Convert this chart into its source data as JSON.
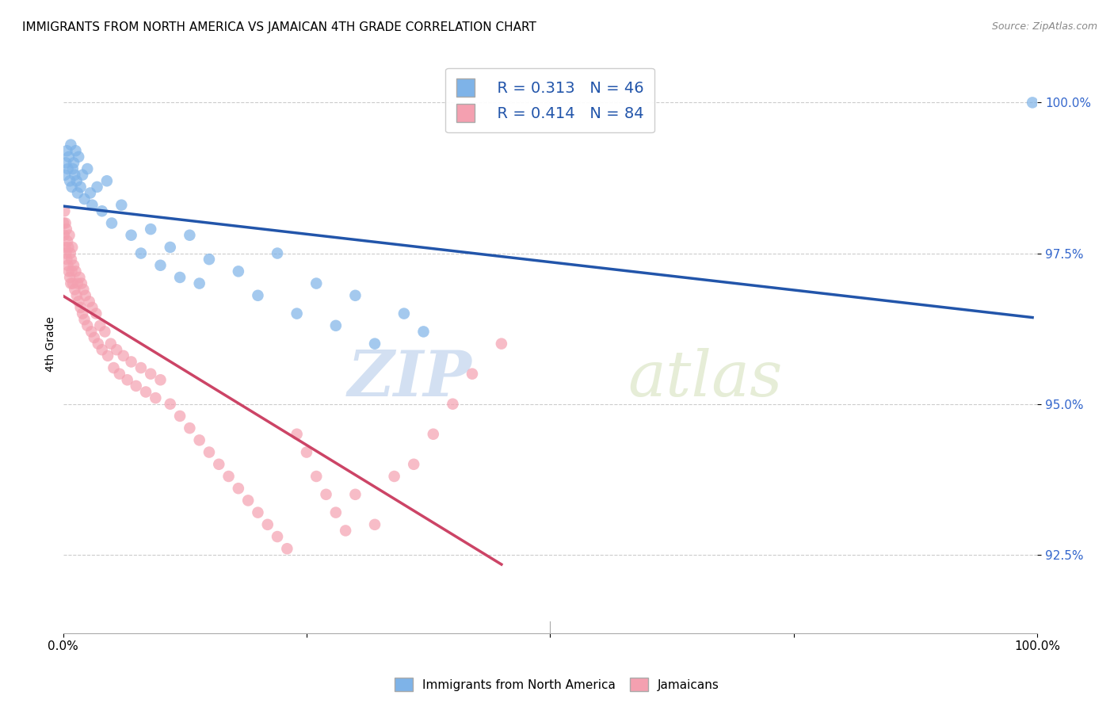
{
  "title": "IMMIGRANTS FROM NORTH AMERICA VS JAMAICAN 4TH GRADE CORRELATION CHART",
  "source": "Source: ZipAtlas.com",
  "ylabel": "4th Grade",
  "xlim": [
    0.0,
    100.0
  ],
  "ylim": [
    91.2,
    100.8
  ],
  "yticks": [
    92.5,
    95.0,
    97.5,
    100.0
  ],
  "ytick_labels": [
    "92.5%",
    "95.0%",
    "97.5%",
    "100.0%"
  ],
  "blue_R": 0.313,
  "blue_N": 46,
  "pink_R": 0.414,
  "pink_N": 84,
  "blue_color": "#7EB3E8",
  "pink_color": "#F4A0B0",
  "blue_line_color": "#2255AA",
  "pink_line_color": "#CC4466",
  "legend1_label": "Immigrants from North America",
  "legend2_label": "Jamaicans",
  "watermark_zip": "ZIP",
  "watermark_atlas": "atlas",
  "background_color": "#ffffff",
  "blue_x": [
    0.2,
    0.3,
    0.4,
    0.5,
    0.6,
    0.7,
    0.8,
    0.9,
    1.0,
    1.1,
    1.2,
    1.3,
    1.4,
    1.5,
    1.6,
    1.8,
    2.0,
    2.2,
    2.5,
    2.8,
    3.0,
    3.5,
    4.0,
    4.5,
    5.0,
    6.0,
    7.0,
    8.0,
    9.0,
    10.0,
    11.0,
    12.0,
    13.0,
    14.0,
    15.0,
    18.0,
    20.0,
    22.0,
    24.0,
    26.0,
    28.0,
    30.0,
    32.0,
    35.0,
    37.0,
    99.5
  ],
  "blue_y": [
    98.8,
    99.0,
    99.2,
    98.9,
    99.1,
    98.7,
    99.3,
    98.6,
    98.9,
    99.0,
    98.8,
    99.2,
    98.7,
    98.5,
    99.1,
    98.6,
    98.8,
    98.4,
    98.9,
    98.5,
    98.3,
    98.6,
    98.2,
    98.7,
    98.0,
    98.3,
    97.8,
    97.5,
    97.9,
    97.3,
    97.6,
    97.1,
    97.8,
    97.0,
    97.4,
    97.2,
    96.8,
    97.5,
    96.5,
    97.0,
    96.3,
    96.8,
    96.0,
    96.5,
    96.2,
    100.0
  ],
  "pink_x": [
    0.05,
    0.1,
    0.15,
    0.2,
    0.25,
    0.3,
    0.35,
    0.4,
    0.45,
    0.5,
    0.55,
    0.6,
    0.65,
    0.7,
    0.75,
    0.8,
    0.85,
    0.9,
    0.95,
    1.0,
    1.1,
    1.2,
    1.3,
    1.4,
    1.5,
    1.6,
    1.7,
    1.8,
    1.9,
    2.0,
    2.1,
    2.2,
    2.3,
    2.5,
    2.7,
    2.9,
    3.0,
    3.2,
    3.4,
    3.6,
    3.8,
    4.0,
    4.3,
    4.6,
    4.9,
    5.2,
    5.5,
    5.8,
    6.2,
    6.6,
    7.0,
    7.5,
    8.0,
    8.5,
    9.0,
    9.5,
    10.0,
    11.0,
    12.0,
    13.0,
    14.0,
    15.0,
    16.0,
    17.0,
    18.0,
    19.0,
    20.0,
    21.0,
    22.0,
    23.0,
    24.0,
    25.0,
    26.0,
    27.0,
    28.0,
    29.0,
    30.0,
    32.0,
    34.0,
    36.0,
    38.0,
    40.0,
    42.0,
    45.0
  ],
  "pink_y": [
    98.0,
    97.8,
    98.2,
    97.6,
    98.0,
    97.5,
    97.9,
    97.4,
    97.7,
    97.3,
    97.6,
    97.2,
    97.8,
    97.1,
    97.5,
    97.0,
    97.4,
    97.2,
    97.6,
    97.0,
    97.3,
    96.9,
    97.2,
    96.8,
    97.0,
    96.7,
    97.1,
    96.6,
    97.0,
    96.5,
    96.9,
    96.4,
    96.8,
    96.3,
    96.7,
    96.2,
    96.6,
    96.1,
    96.5,
    96.0,
    96.3,
    95.9,
    96.2,
    95.8,
    96.0,
    95.6,
    95.9,
    95.5,
    95.8,
    95.4,
    95.7,
    95.3,
    95.6,
    95.2,
    95.5,
    95.1,
    95.4,
    95.0,
    94.8,
    94.6,
    94.4,
    94.2,
    94.0,
    93.8,
    93.6,
    93.4,
    93.2,
    93.0,
    92.8,
    92.6,
    94.5,
    94.2,
    93.8,
    93.5,
    93.2,
    92.9,
    93.5,
    93.0,
    93.8,
    94.0,
    94.5,
    95.0,
    95.5,
    96.0
  ]
}
